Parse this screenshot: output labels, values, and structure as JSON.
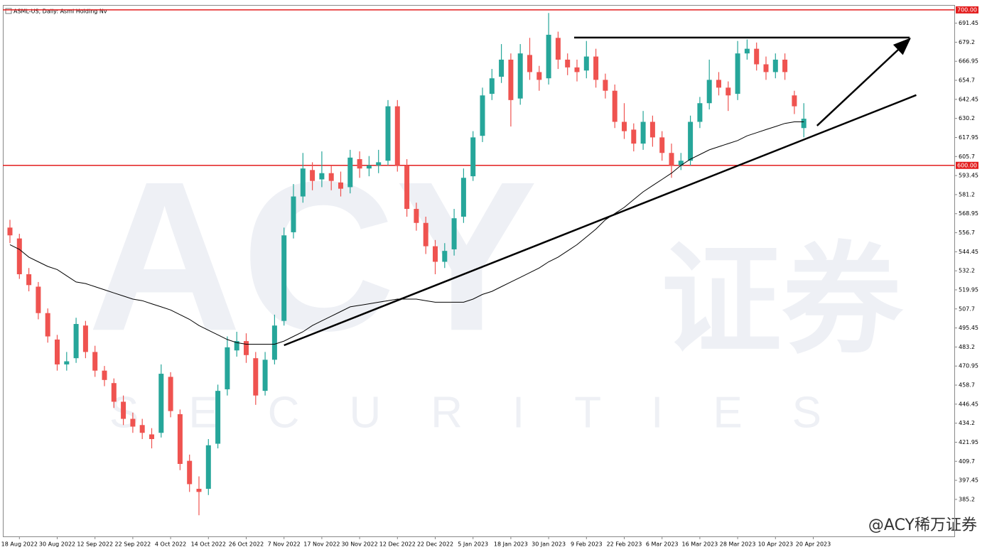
{
  "chart_data": {
    "type": "candlestick",
    "title": "ASML-US, Daily:  Asml Holding Nv",
    "categories": [
      null,
      "18 Aug 2022",
      null,
      null,
      null,
      "30 Aug 2022",
      null,
      null,
      null,
      "12 Sep 2022",
      null,
      null,
      null,
      "22 Sep 2022",
      null,
      null,
      null,
      "4 Oct 2022",
      null,
      null,
      null,
      "14 Oct 2022",
      null,
      null,
      null,
      "26 Oct 2022",
      null,
      null,
      null,
      "7 Nov 2022",
      null,
      null,
      null,
      "17 Nov 2022",
      null,
      null,
      null,
      "30 Nov 2022",
      null,
      null,
      null,
      "12 Dec 2022",
      null,
      null,
      null,
      "22 Dec 2022",
      null,
      null,
      null,
      "5 Jan 2023",
      null,
      null,
      null,
      "18 Jan 2023",
      null,
      null,
      null,
      "30 Jan 2023",
      null,
      null,
      null,
      "9 Feb 2023",
      null,
      null,
      null,
      "22 Feb 2023",
      null,
      null,
      null,
      "6 Mar 2023",
      null,
      null,
      null,
      "16 Mar 2023",
      null,
      null,
      null,
      "28 Mar 2023",
      null,
      null,
      null,
      "10 Apr 2023",
      null,
      null,
      null,
      "20 Apr 2023"
    ],
    "open": [
      560,
      553,
      530,
      522,
      505,
      488,
      472,
      476,
      497,
      480,
      468,
      460,
      448,
      437,
      433,
      427,
      428,
      464,
      440,
      410,
      392,
      392,
      421,
      456,
      481,
      487,
      476,
      455,
      475,
      500,
      557,
      580,
      597,
      591,
      595,
      589,
      586,
      604,
      598,
      600,
      603,
      638,
      600,
      572,
      563,
      548,
      538,
      546,
      567,
      593,
      619,
      646,
      657,
      668,
      643,
      671,
      660,
      656,
      682,
      668,
      663,
      661,
      670,
      655,
      648,
      628,
      623,
      614,
      628,
      618,
      608,
      600,
      603,
      628,
      640,
      655,
      650,
      646,
      672,
      675,
      665,
      660,
      668,
      645,
      624,
      null
    ],
    "high": [
      565,
      556,
      534,
      525,
      508,
      491,
      480,
      502,
      500,
      484,
      471,
      463,
      452,
      441,
      437,
      431,
      472,
      467,
      443,
      414,
      400,
      424,
      459,
      490,
      493,
      492,
      480,
      480,
      504,
      560,
      588,
      608,
      602,
      609,
      600,
      596,
      610,
      609,
      606,
      610,
      642,
      642,
      604,
      576,
      567,
      552,
      550,
      572,
      598,
      622,
      650,
      662,
      678,
      672,
      678,
      682,
      664,
      698,
      686,
      672,
      668,
      680,
      675,
      659,
      652,
      640,
      627,
      635,
      632,
      622,
      614,
      608,
      632,
      644,
      668,
      660,
      654,
      680,
      681,
      679,
      670,
      672,
      672,
      648,
      640,
      null
    ],
    "low": [
      550,
      527,
      519,
      501,
      486,
      468,
      468,
      473,
      476,
      464,
      458,
      444,
      433,
      428,
      424,
      418,
      425,
      438,
      404,
      390,
      375,
      388,
      418,
      452,
      477,
      473,
      446,
      452,
      472,
      497,
      553,
      576,
      584,
      586,
      584,
      580,
      582,
      592,
      593,
      595,
      600,
      596,
      567,
      558,
      543,
      530,
      534,
      542,
      563,
      590,
      615,
      642,
      653,
      625,
      639,
      655,
      648,
      652,
      662,
      658,
      654,
      656,
      650,
      643,
      624,
      617,
      609,
      610,
      612,
      603,
      592,
      597,
      600,
      624,
      636,
      645,
      635,
      642,
      668,
      661,
      655,
      656,
      655,
      633,
      618,
      null
    ],
    "close": [
      555,
      530,
      523,
      505,
      490,
      472,
      474,
      498,
      480,
      468,
      462,
      448,
      437,
      432,
      428,
      424,
      466,
      442,
      408,
      395,
      390,
      420,
      455,
      483,
      487,
      478,
      452,
      475,
      497,
      555,
      580,
      598,
      590,
      595,
      590,
      585,
      605,
      598,
      600,
      602,
      638,
      600,
      572,
      563,
      548,
      538,
      545,
      566,
      592,
      618,
      645,
      656,
      668,
      642,
      672,
      660,
      655,
      684,
      668,
      663,
      660,
      670,
      655,
      648,
      628,
      622,
      614,
      628,
      618,
      608,
      600,
      603,
      628,
      640,
      655,
      650,
      645,
      672,
      675,
      665,
      660,
      668,
      660,
      638,
      630,
      null
    ],
    "up_color": "#26a69a",
    "down_color": "#ef5350",
    "ma": {
      "color": "#000000",
      "values": [
        549,
        546,
        541,
        538,
        535,
        533,
        529,
        525,
        524,
        522,
        520,
        518,
        516,
        514,
        513,
        511,
        509,
        507,
        504,
        501,
        497,
        494,
        491,
        488,
        486,
        485,
        485,
        485,
        485,
        487,
        490,
        493,
        497,
        500,
        503,
        506,
        509,
        510,
        511,
        512,
        513,
        514,
        514,
        514,
        513,
        512,
        512,
        512,
        512,
        514,
        517,
        519,
        522,
        525,
        528,
        531,
        534,
        538,
        541,
        545,
        549,
        554,
        559,
        565,
        569,
        573,
        578,
        583,
        587,
        591,
        595,
        600,
        604,
        607,
        610,
        612,
        614,
        616,
        619,
        621,
        623,
        625,
        627,
        628,
        628,
        null
      ]
    },
    "ylim": [
      361.4,
      702.7
    ],
    "yticks": [
      691.45,
      679.2,
      666.95,
      654.7,
      642.45,
      630.2,
      617.95,
      605.7,
      593.45,
      581.2,
      568.95,
      556.7,
      544.45,
      532.2,
      519.95,
      507.7,
      495.45,
      483.2,
      470.95,
      458.7,
      446.45,
      434.2,
      421.95,
      409.7,
      397.45,
      385.2
    ],
    "hlines": [
      {
        "value": 700,
        "label": "700.00",
        "color": "#e31e1e"
      },
      {
        "value": 600,
        "label": "600.00",
        "color": "#e31e1e"
      }
    ],
    "lines": [
      {
        "x": [
          29.0,
          95.9
        ],
        "y": [
          484.3,
          645.2
        ],
        "color": "#000000"
      },
      {
        "x": [
          59.7,
          95.2
        ],
        "y": [
          682.2,
          682.2
        ],
        "color": "#000000"
      }
    ],
    "arrows": [
      {
        "x": [
          85.4,
          95.2
        ],
        "y": [
          625.5,
          681.3
        ],
        "color": "#000000"
      }
    ],
    "watermark": {
      "logo": "ACY",
      "cn": "证券",
      "en": "SECURITIES"
    },
    "footer": "@ACY稀万证券"
  }
}
